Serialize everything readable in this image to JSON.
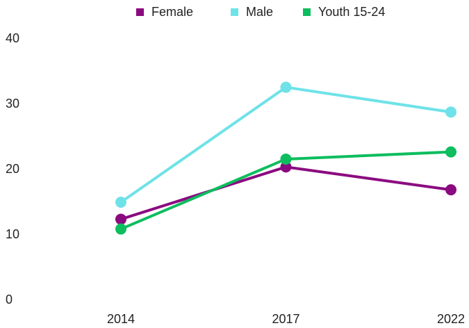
{
  "chart_data": {
    "type": "line",
    "categories": [
      "2014",
      "2017",
      "2022"
    ],
    "series": [
      {
        "name": "Female",
        "color": "#8b0a80",
        "values": [
          12.4,
          20.4,
          16.9
        ]
      },
      {
        "name": "Male",
        "color": "#6ee2e8",
        "values": [
          15.0,
          32.6,
          28.8
        ]
      },
      {
        "name": "Youth 15-24",
        "color": "#0dbd5e",
        "values": [
          10.9,
          21.6,
          22.7
        ]
      }
    ],
    "ylim": [
      0,
      40
    ],
    "yticks": [
      0,
      10,
      20,
      30,
      40
    ],
    "grid": false,
    "legend": "top"
  }
}
